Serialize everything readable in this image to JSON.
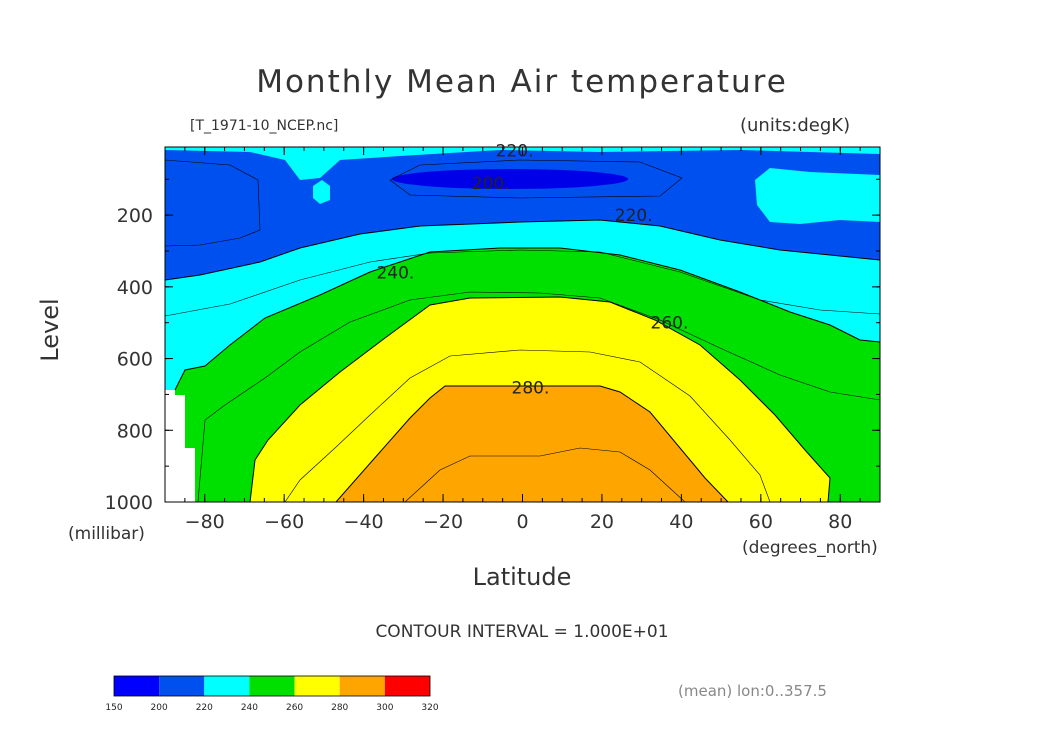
{
  "chart_data": {
    "type": "contour",
    "title": "Monthly Mean Air temperature",
    "file_label": "[T_1971-10_NCEP.nc]",
    "units_label": "(units:degK)",
    "xlabel": "Latitude",
    "xunits": "(degrees_north)",
    "ylabel": "Level",
    "yunits": "(millibar)",
    "xlim": [
      -90,
      90
    ],
    "ylim": [
      1000,
      10
    ],
    "x_ticks": [
      -80,
      -60,
      -40,
      -20,
      0,
      20,
      40,
      60,
      80
    ],
    "x_tick_labels": [
      "−80",
      "−60",
      "−40",
      "−20",
      "0",
      "20",
      "40",
      "60",
      "80"
    ],
    "y_ticks": [
      200,
      400,
      600,
      800,
      1000
    ],
    "y_tick_labels": [
      "200",
      "400",
      "600",
      "800",
      "1000"
    ],
    "contour_interval": "CONTOUR INTERVAL = 1.000E+01",
    "contour_labels": [
      {
        "text": "220.",
        "lat": -2,
        "level": 20
      },
      {
        "text": "200.",
        "lat": -8,
        "level": 110
      },
      {
        "text": "220.",
        "lat": 28,
        "level": 200
      },
      {
        "text": "240.",
        "lat": -32,
        "level": 360
      },
      {
        "text": "260.",
        "lat": 37,
        "level": 500
      },
      {
        "text": "280.",
        "lat": 2,
        "level": 680
      }
    ],
    "colorbar": {
      "levels": [
        "150",
        "200",
        "220",
        "240",
        "260",
        "280",
        "300",
        "320"
      ],
      "colors": [
        "#0000ff",
        "#0050f0",
        "#00ffff",
        "#00e000",
        "#ffff00",
        "#ffa500",
        "#ff0000"
      ]
    },
    "footer": "(mean) lon:0..357.5"
  }
}
